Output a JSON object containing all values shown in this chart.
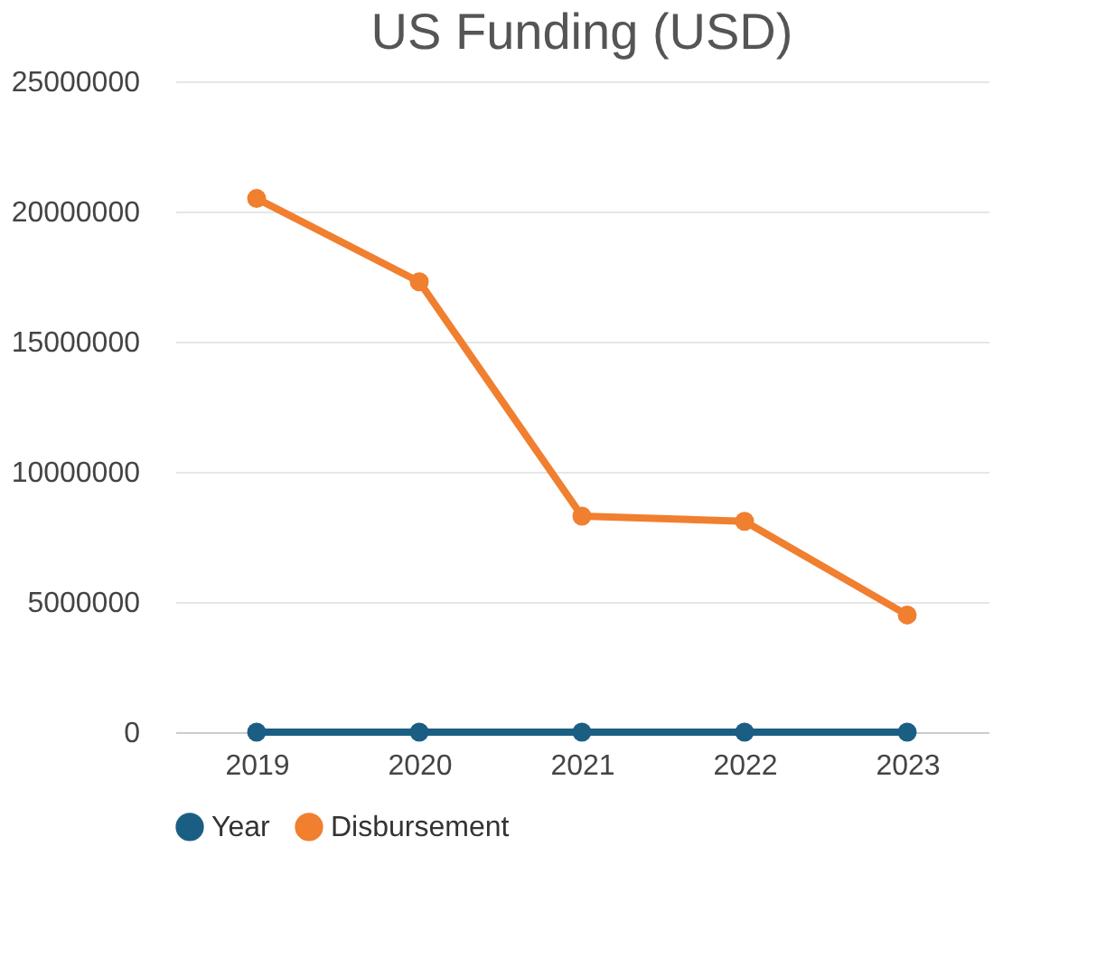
{
  "chart_data": {
    "type": "line",
    "title": "US Funding (USD)",
    "categories": [
      "2019",
      "2020",
      "2021",
      "2022",
      "2023"
    ],
    "series": [
      {
        "name": "Year",
        "color": "#1b5e84",
        "values": [
          0,
          0,
          0,
          0,
          0
        ]
      },
      {
        "name": "Disbursement",
        "color": "#f07f2f",
        "values": [
          20500000,
          17300000,
          8300000,
          8100000,
          4500000
        ]
      }
    ],
    "ylim": [
      0,
      25000000
    ],
    "yticks": [
      0,
      5000000,
      10000000,
      15000000,
      20000000,
      25000000
    ],
    "grid": "y",
    "legend": "bottom",
    "marker": "circle",
    "line_style": "solid"
  }
}
